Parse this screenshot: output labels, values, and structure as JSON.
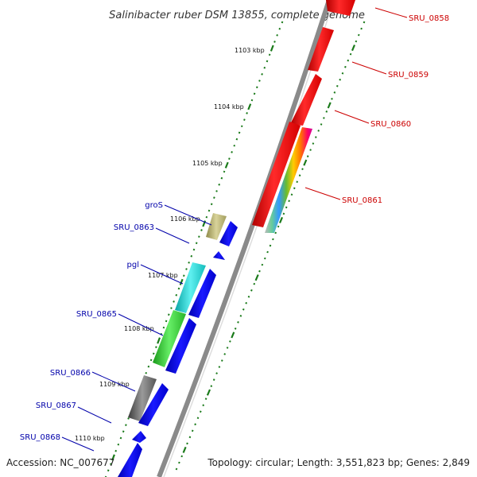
{
  "title": "Salinibacter ruber DSM 13855, complete genome",
  "footer": {
    "accession": "Accession: NC_007677",
    "summary": "Topology: circular; Length: 3,551,823 bp; Genes: 2,849"
  },
  "ticks": [
    {
      "label": "1103 kbp"
    },
    {
      "label": "1104 kbp"
    },
    {
      "label": "1105 kbp"
    },
    {
      "label": "1106 kbp"
    },
    {
      "label": "1107 kbp"
    },
    {
      "label": "1108 kbp"
    },
    {
      "label": "1109 kbp"
    },
    {
      "label": "1110 kbp"
    }
  ],
  "features": [
    {
      "name": "SRU_0858",
      "strand": "plus",
      "color": "#ff0000"
    },
    {
      "name": "SRU_0859",
      "strand": "plus",
      "color": "#ff0000"
    },
    {
      "name": "SRU_0860",
      "strand": "plus",
      "color": "#ff0000"
    },
    {
      "name": "SRU_0861",
      "strand": "plus",
      "color": "#999999"
    },
    {
      "name": "groS",
      "strand": "minus",
      "color": "#b5b070"
    },
    {
      "name": "SRU_0863",
      "strand": "minus",
      "color": "#0000ee"
    },
    {
      "name": "pgl",
      "strand": "minus",
      "color": "#22cccc"
    },
    {
      "name": "SRU_0865",
      "strand": "minus",
      "color": "#33cc33"
    },
    {
      "name": "SRU_0866",
      "strand": "minus",
      "color": "#666666"
    },
    {
      "name": "SRU_0867",
      "strand": "minus",
      "color": "#0000ee"
    },
    {
      "name": "SRU_0868",
      "strand": "minus",
      "color": "#0000ee"
    }
  ],
  "colors": {
    "backbone": "#8a8a8a",
    "tick": "#1a7a1a",
    "plus_strand": "#ff0000",
    "minus_strand": "#0000ee",
    "plus_label": "#cc0000",
    "minus_label": "#0000aa"
  }
}
